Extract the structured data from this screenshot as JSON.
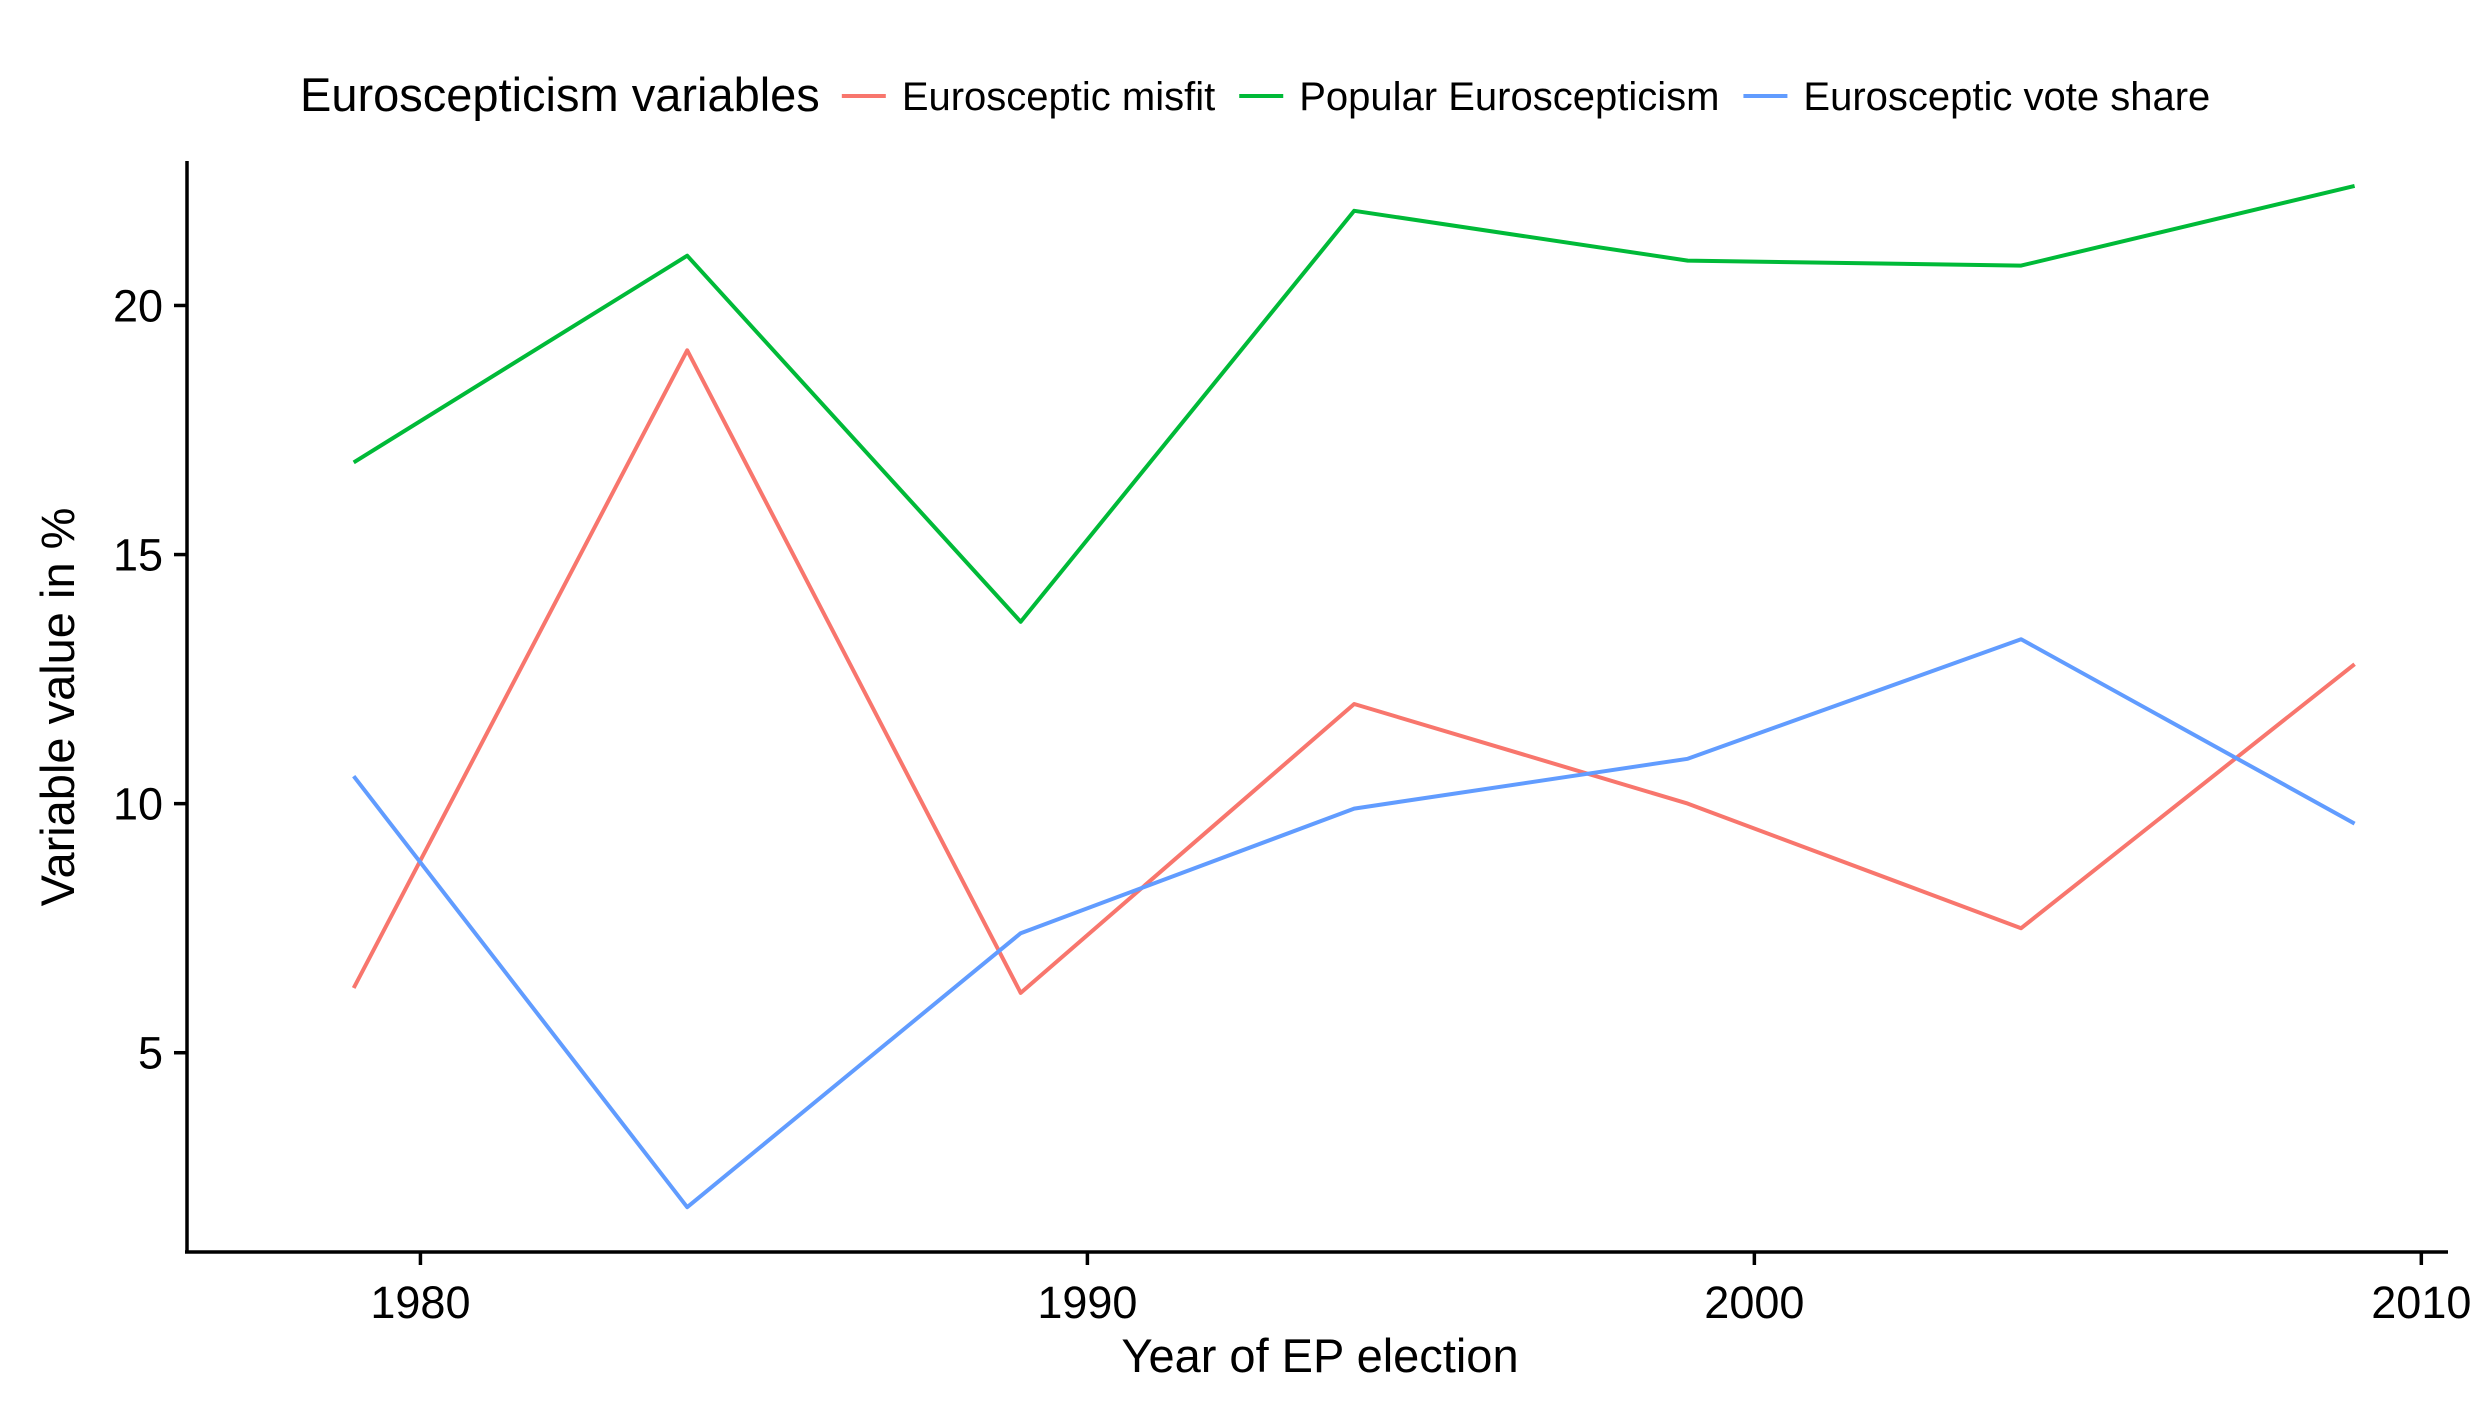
{
  "chart_data": {
    "type": "line",
    "title": "",
    "xlabel": "Year of EP election",
    "ylabel": "Variable value in %",
    "xlim": [
      1976.5,
      2010.4
    ],
    "ylim": [
      1.0,
      22.9
    ],
    "x_ticks": [
      1980,
      1990,
      2000,
      2010
    ],
    "y_ticks": [
      5,
      10,
      15,
      20
    ],
    "grid": false,
    "legend": {
      "title": "Euroscepticism variables",
      "position": "top"
    },
    "x": [
      1979,
      1984,
      1989,
      1994,
      1999,
      2004,
      2009
    ],
    "series": [
      {
        "name": "Eurosceptic misfit",
        "color": "#F8766D",
        "values": [
          6.3,
          19.1,
          6.2,
          12.0,
          10.0,
          7.5,
          12.8
        ]
      },
      {
        "name": "Popular Euroscepticism",
        "color": "#00BA38",
        "values": [
          16.85,
          21.0,
          13.65,
          21.9,
          20.9,
          20.8,
          22.4
        ]
      },
      {
        "name": "Eurosceptic vote share",
        "color": "#619CFF",
        "values": [
          10.55,
          1.9,
          7.4,
          9.9,
          10.9,
          13.3,
          9.6
        ]
      }
    ]
  }
}
